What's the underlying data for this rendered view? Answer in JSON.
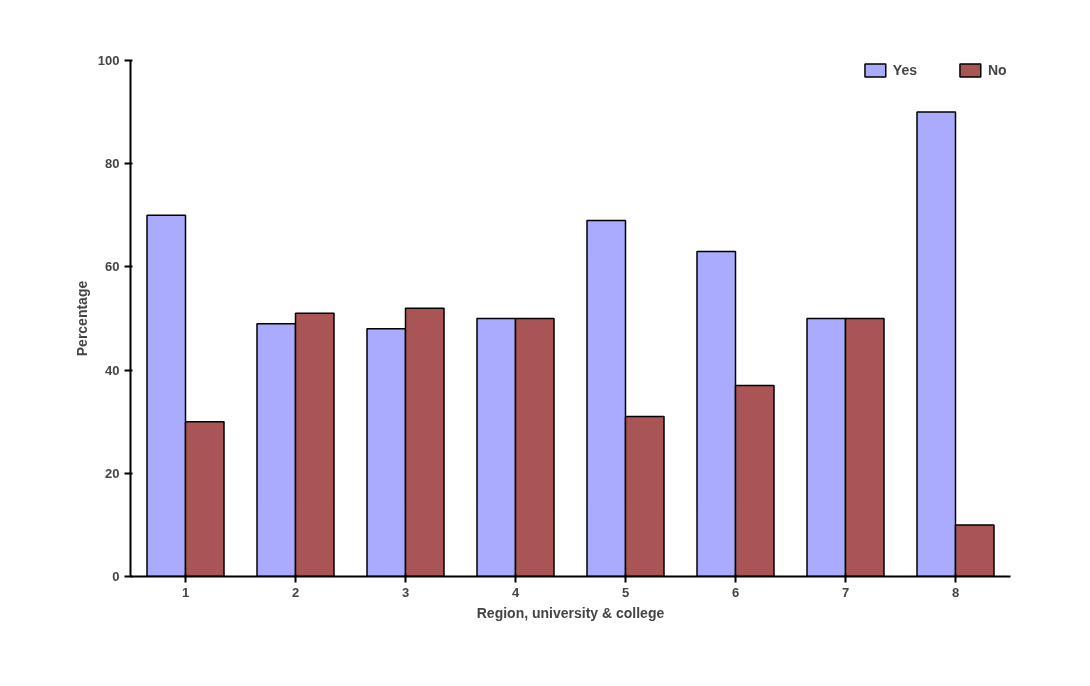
{
  "chart_data": {
    "type": "bar",
    "xlabel": "Region, university & college",
    "ylabel": "Percentage",
    "categories": [
      "1",
      "2",
      "3",
      "4",
      "5",
      "6",
      "7",
      "8"
    ],
    "series": [
      {
        "name": "Yes",
        "color": "#aaaaff",
        "values": [
          70,
          49,
          48,
          50,
          69,
          63,
          50,
          90
        ]
      },
      {
        "name": "No",
        "color": "#aa5555",
        "values": [
          30,
          51,
          52,
          50,
          31,
          37,
          50,
          10
        ]
      }
    ],
    "ylim": [
      0,
      100
    ],
    "yticks": [
      0,
      20,
      40,
      60,
      80,
      100
    ],
    "grid": false,
    "legend": "top right"
  }
}
